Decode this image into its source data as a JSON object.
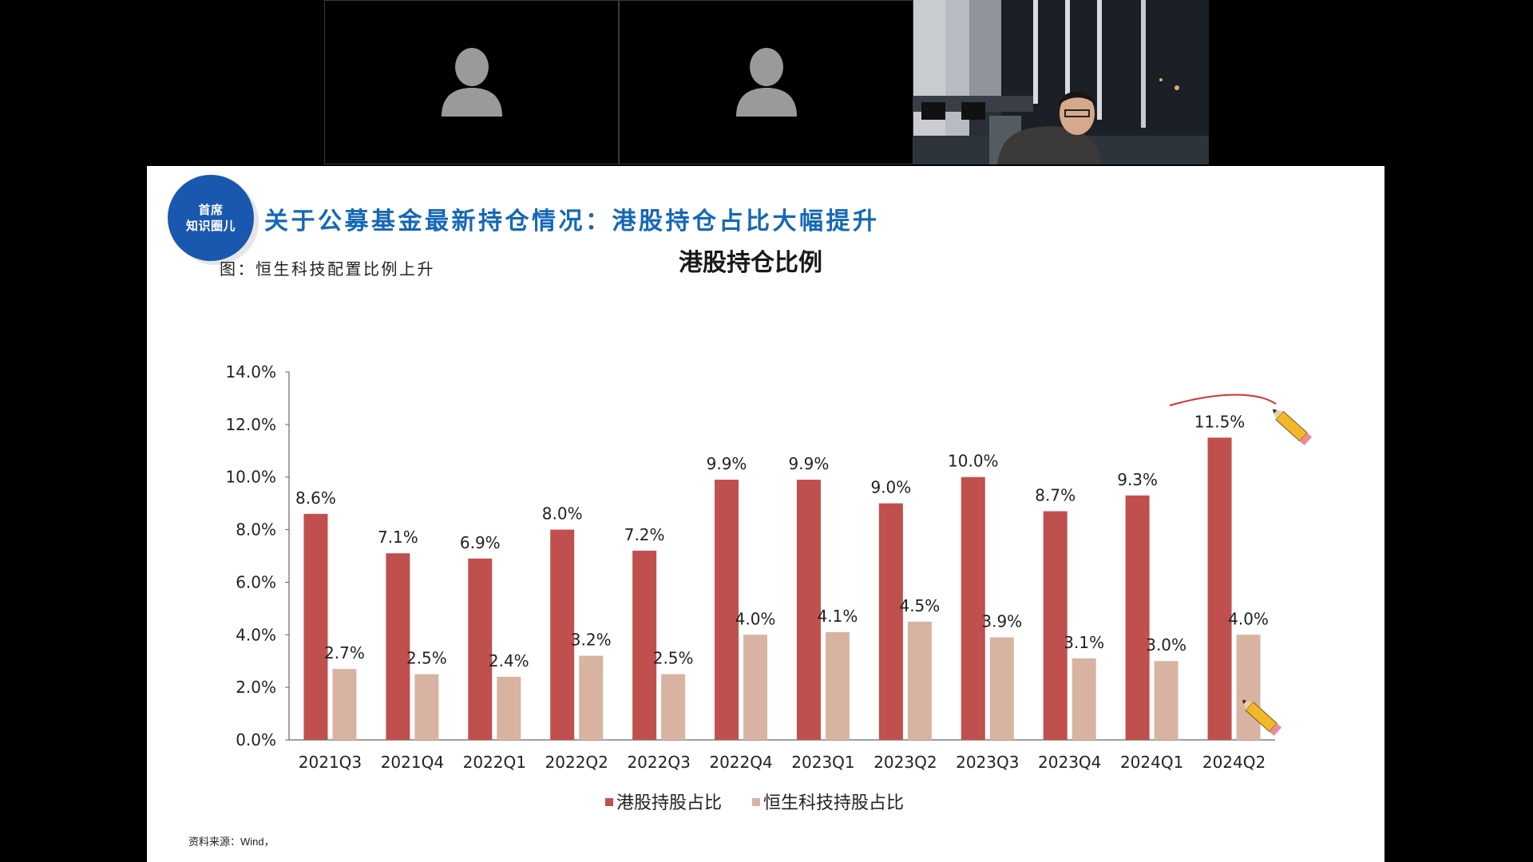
{
  "meeting": {
    "participants": [
      {
        "label": "participant-1",
        "video": "off",
        "icon": "person-silhouette-icon"
      },
      {
        "label": "participant-2",
        "video": "off",
        "icon": "person-silhouette-icon"
      },
      {
        "label": "speaker",
        "video": "on"
      }
    ]
  },
  "slide": {
    "badge_line1": "首席",
    "badge_line2": "知识圈儿",
    "title": "关于公募基金最新持仓情况：港股持仓占比大幅提升",
    "caption": "图：恒生科技配置比例上升",
    "source": "资料来源：Wind，",
    "annotations": [
      "pencil-icon",
      "pencil-icon",
      "red-arc-annotation"
    ]
  },
  "chart_data": {
    "type": "bar",
    "title": "港股持仓比例",
    "categories": [
      "2021Q3",
      "2021Q4",
      "2022Q1",
      "2022Q2",
      "2022Q3",
      "2022Q4",
      "2023Q1",
      "2023Q2",
      "2023Q3",
      "2023Q4",
      "2024Q1",
      "2024Q2"
    ],
    "series": [
      {
        "name": "港股持股占比",
        "color": "#c0504d",
        "values": [
          8.6,
          7.1,
          6.9,
          8.0,
          7.2,
          9.9,
          9.9,
          9.0,
          10.0,
          8.7,
          9.3,
          11.5
        ],
        "labels": [
          "8.6%",
          "7.1%",
          "6.9%",
          "8.0%",
          "7.2%",
          "9.9%",
          "9.9%",
          "9.0%",
          "10.0%",
          "8.7%",
          "9.3%",
          "11.5%"
        ]
      },
      {
        "name": "恒生科技持股占比",
        "color": "#d9b3a1",
        "values": [
          2.7,
          2.5,
          2.4,
          3.2,
          2.5,
          4.0,
          4.1,
          4.5,
          3.9,
          3.1,
          3.0,
          4.0
        ],
        "labels": [
          "2.7%",
          "2.5%",
          "2.4%",
          "3.2%",
          "2.5%",
          "4.0%",
          "4.1%",
          "4.5%",
          "3.9%",
          "3.1%",
          "3.0%",
          "4.0%"
        ]
      }
    ],
    "ylim": [
      0,
      14
    ],
    "yticks": [
      0,
      2,
      4,
      6,
      8,
      10,
      12,
      14
    ],
    "ytick_labels": [
      "0.0%",
      "2.0%",
      "4.0%",
      "6.0%",
      "8.0%",
      "10.0%",
      "12.0%",
      "14.0%"
    ],
    "xlabel": "",
    "ylabel": "",
    "legend": "bottom-center",
    "grid": false
  }
}
